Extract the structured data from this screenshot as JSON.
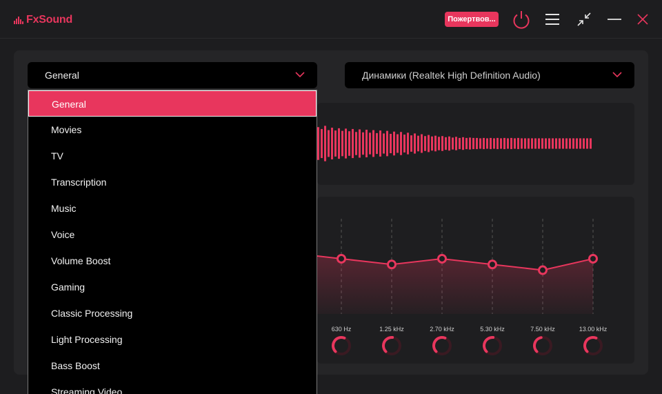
{
  "app": {
    "logo_text": "FxSound",
    "donate_label": "Пожертвов...",
    "accent_color": "#e8365d",
    "icons": [
      "power-icon",
      "menu-icon",
      "shrink-icon",
      "minimize-icon",
      "close-icon"
    ]
  },
  "preset": {
    "selected": "General",
    "options": [
      "General",
      "Movies",
      "TV",
      "Transcription",
      "Music",
      "Voice",
      "Volume Boost",
      "Gaming",
      "Classic Processing",
      "Light Processing",
      "Bass Boost",
      "Streaming Video"
    ]
  },
  "device": {
    "selected": "Динамики (Realtek High Definition Audio)"
  },
  "equalizer": {
    "bands": [
      {
        "label": "630 Hz",
        "level": 0.58
      },
      {
        "label": "1.25 kHz",
        "level": 0.52
      },
      {
        "label": "2.70 kHz",
        "level": 0.58
      },
      {
        "label": "5.30 kHz",
        "level": 0.52
      },
      {
        "label": "7.50 kHz",
        "level": 0.46
      },
      {
        "label": "13.00 kHz",
        "level": 0.58
      }
    ]
  },
  "visualizer": {
    "levels": [
      0.88,
      0.78,
      0.95,
      0.72,
      0.85,
      0.7,
      0.82,
      0.68,
      0.8,
      0.66,
      0.78,
      0.62,
      0.76,
      0.6,
      0.74,
      0.58,
      0.72,
      0.56,
      0.7,
      0.54,
      0.68,
      0.52,
      0.64,
      0.5,
      0.62,
      0.48,
      0.58,
      0.44,
      0.54,
      0.42,
      0.5,
      0.4,
      0.46,
      0.38,
      0.42,
      0.36,
      0.4,
      0.34,
      0.38,
      0.32,
      0.36,
      0.3,
      0.34,
      0.3,
      0.32,
      0.3,
      0.3,
      0.28,
      0.3,
      0.28,
      0.3,
      0.28,
      0.3,
      0.28,
      0.3,
      0.28,
      0.3,
      0.28,
      0.3,
      0.28,
      0.28,
      0.28,
      0.28,
      0.28,
      0.28,
      0.28,
      0.28,
      0.28,
      0.28,
      0.28,
      0.28,
      0.28,
      0.28,
      0.28,
      0.28,
      0.28,
      0.28,
      0.28,
      0.28,
      0.28
    ]
  }
}
